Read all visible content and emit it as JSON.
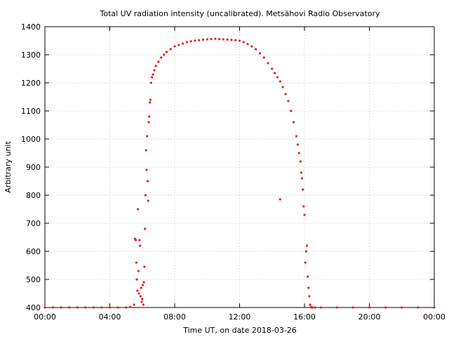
{
  "chart_data": {
    "type": "scatter",
    "title": "Total UV radiation intensity (uncalibrated). Metsähovi Radio Observatory",
    "xlabel": "Time UT, on date 2018-03-26",
    "ylabel": "Arbitrary unit",
    "xlim": [
      "00:00",
      "24:00"
    ],
    "ylim": [
      400,
      1400
    ],
    "x_ticks": [
      "00:00",
      "04:00",
      "08:00",
      "12:00",
      "16:00",
      "20:00",
      "00:00"
    ],
    "y_ticks": [
      "400",
      "500",
      "600",
      "700",
      "800",
      "900",
      "1000",
      "1100",
      "1200",
      "1300",
      "1400"
    ],
    "grid": true,
    "marker_color": "#e8201f",
    "series": [
      {
        "x": [
          "00:00",
          "00:30",
          "01:00",
          "01:30",
          "02:00",
          "02:30",
          "03:00",
          "03:30",
          "04:00",
          "04:30",
          "05:00",
          "05:15",
          "05:30",
          "05:33",
          "05:36",
          "05:38",
          "05:40",
          "05:42",
          "05:44",
          "05:46",
          "05:48",
          "05:50",
          "05:52",
          "05:54",
          "05:56",
          "05:58",
          "06:00",
          "06:02",
          "06:04",
          "06:06",
          "06:08",
          "06:10",
          "06:12",
          "06:14",
          "06:16",
          "06:18",
          "06:20",
          "06:22",
          "06:24",
          "06:26",
          "06:28",
          "06:30",
          "06:33",
          "06:36",
          "06:40",
          "06:45",
          "06:50",
          "07:00",
          "07:10",
          "07:20",
          "07:30",
          "07:45",
          "08:00",
          "08:15",
          "08:30",
          "08:45",
          "09:00",
          "09:15",
          "09:30",
          "09:45",
          "10:00",
          "10:15",
          "10:30",
          "10:45",
          "11:00",
          "11:15",
          "11:30",
          "11:45",
          "12:00",
          "12:15",
          "12:30",
          "12:45",
          "13:00",
          "13:15",
          "13:30",
          "13:45",
          "14:00",
          "14:10",
          "14:20",
          "14:30",
          "14:40",
          "14:50",
          "15:00",
          "15:10",
          "15:20",
          "15:30",
          "15:35",
          "15:40",
          "15:45",
          "15:48",
          "15:51",
          "15:54",
          "15:57",
          "16:00",
          "16:03",
          "16:06",
          "16:09",
          "16:12",
          "16:15",
          "16:18",
          "16:21",
          "16:24",
          "16:27",
          "16:30",
          "16:40",
          "17:00",
          "18:00",
          "19:00",
          "20:00",
          "21:00",
          "22:00",
          "23:00",
          "24:00",
          "14:30"
        ],
        "y": [
          400,
          400,
          400,
          400,
          400,
          400,
          400,
          400,
          400,
          400,
          400,
          402,
          410,
          645,
          640,
          560,
          500,
          460,
          750,
          530,
          450,
          640,
          620,
          440,
          470,
          420,
          430,
          480,
          410,
          490,
          545,
          680,
          800,
          960,
          890,
          1010,
          850,
          780,
          1060,
          1080,
          1130,
          1140,
          1200,
          1220,
          1230,
          1245,
          1260,
          1275,
          1290,
          1300,
          1310,
          1320,
          1330,
          1335,
          1340,
          1345,
          1348,
          1350,
          1352,
          1354,
          1355,
          1356,
          1357,
          1356,
          1355,
          1354,
          1353,
          1352,
          1350,
          1345,
          1338,
          1330,
          1320,
          1305,
          1290,
          1270,
          1250,
          1235,
          1220,
          1205,
          1185,
          1160,
          1135,
          1100,
          1060,
          1010,
          980,
          950,
          920,
          880,
          860,
          820,
          760,
          730,
          560,
          600,
          620,
          510,
          470,
          440,
          410,
          402,
          400,
          400,
          400,
          400,
          400,
          400,
          400,
          400,
          400,
          400,
          400,
          785
        ]
      }
    ]
  }
}
